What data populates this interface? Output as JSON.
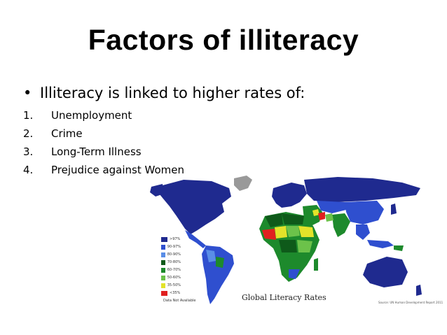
{
  "slide": {
    "title": "Factors of illiteracy",
    "bullet": "Illiteracy is linked to higher rates of:",
    "bullet_symbol": "•",
    "list": [
      {
        "num": "1.",
        "text": "Unemployment"
      },
      {
        "num": "2.",
        "text": "Crime"
      },
      {
        "num": "3.",
        "text": "Long-Term Illness"
      },
      {
        "num": "4.",
        "text": "Prejudice against Women"
      }
    ]
  },
  "map": {
    "title": "Global Literacy Rates",
    "source": "Source: UN Human Development Report 2011",
    "legend": [
      {
        "label": ">97%",
        "color": "#1f2a8f"
      },
      {
        "label": "90-97%",
        "color": "#2f4fcf"
      },
      {
        "label": "80-90%",
        "color": "#5a8ee6"
      },
      {
        "label": "70-80%",
        "color": "#0e5a1a"
      },
      {
        "label": "60-70%",
        "color": "#1d8a2c"
      },
      {
        "label": "50-60%",
        "color": "#6cc24a"
      },
      {
        "label": "35-50%",
        "color": "#e3e32a"
      },
      {
        "label": "<35%",
        "color": "#e02020"
      },
      {
        "label": "Data Not Available",
        "color": "#999999"
      }
    ]
  }
}
